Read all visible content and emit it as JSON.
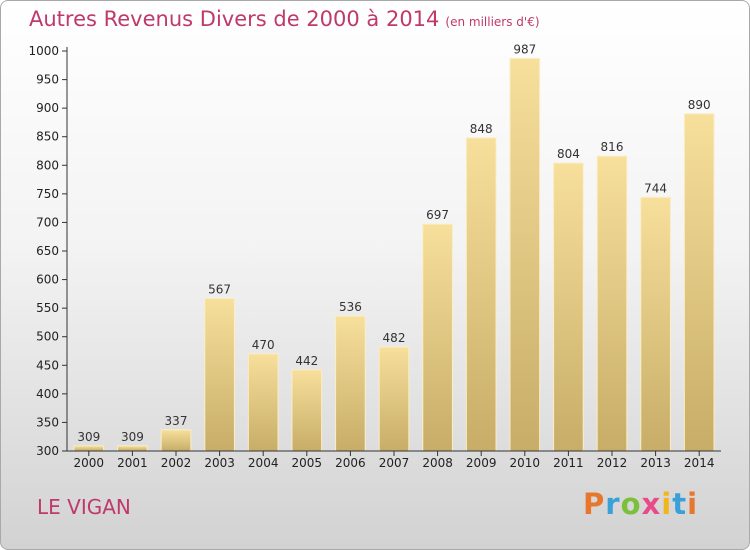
{
  "header": {
    "title": "Autres Revenus Divers de 2000 à 2014",
    "unit": "(en milliers d'€)"
  },
  "footer": {
    "location": "LE VIGAN",
    "brand": "Proxiti",
    "brand_colors": [
      "#e8772e",
      "#3aa0d8",
      "#7bbf3a",
      "#e84a8a",
      "#f2b51c",
      "#3aa0d8",
      "#e8772e"
    ]
  },
  "colors": {
    "title": "#c0396b",
    "bar_top": "#f7df9c",
    "bar_bottom": "#c7ad67",
    "axis": "#333333"
  },
  "chart_data": {
    "type": "bar",
    "title": "Autres Revenus Divers de 2000 à 2014",
    "subtitle": "(en milliers d'€)",
    "categories": [
      "2000",
      "2001",
      "2002",
      "2003",
      "2004",
      "2005",
      "2006",
      "2007",
      "2008",
      "2009",
      "2010",
      "2011",
      "2012",
      "2013",
      "2014"
    ],
    "values": [
      309,
      309,
      337,
      567,
      470,
      442,
      536,
      482,
      697,
      848,
      987,
      804,
      816,
      744,
      890
    ],
    "ylim": [
      300,
      1000
    ],
    "yticks": [
      300,
      350,
      400,
      450,
      500,
      550,
      600,
      650,
      700,
      750,
      800,
      850,
      900,
      950,
      1000
    ],
    "grid": false,
    "legend": "none"
  }
}
